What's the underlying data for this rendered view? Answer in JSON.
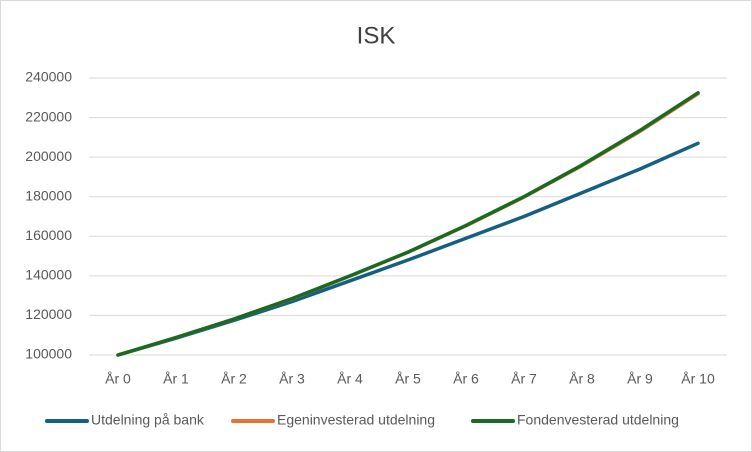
{
  "chart_data": {
    "type": "line",
    "title": "ISK",
    "categories": [
      "År 0",
      "År 1",
      "År 2",
      "År 3",
      "År 4",
      "År 5",
      "År 6",
      "År 7",
      "År 8",
      "År 9",
      "År 10"
    ],
    "series": [
      {
        "name": "Utdelning på bank",
        "color": "#156082",
        "values": [
          100000,
          108500,
          117500,
          127000,
          137500,
          148000,
          159000,
          170000,
          182000,
          194000,
          207000
        ]
      },
      {
        "name": "Egeninvesterad utdelning",
        "color": "#e97132",
        "values": [
          100000,
          108800,
          118200,
          128400,
          139900,
          151900,
          165300,
          179800,
          195700,
          213000,
          232000
        ]
      },
      {
        "name": "Fondenvesterad utdelning",
        "color": "#196b24",
        "values": [
          100000,
          108800,
          118200,
          128500,
          140000,
          152000,
          165500,
          180000,
          196000,
          213500,
          232500
        ]
      }
    ],
    "ylim": [
      100000,
      240000
    ],
    "yticks": [
      100000,
      120000,
      140000,
      160000,
      180000,
      200000,
      220000,
      240000
    ],
    "grid": true,
    "legend": "bottom"
  }
}
